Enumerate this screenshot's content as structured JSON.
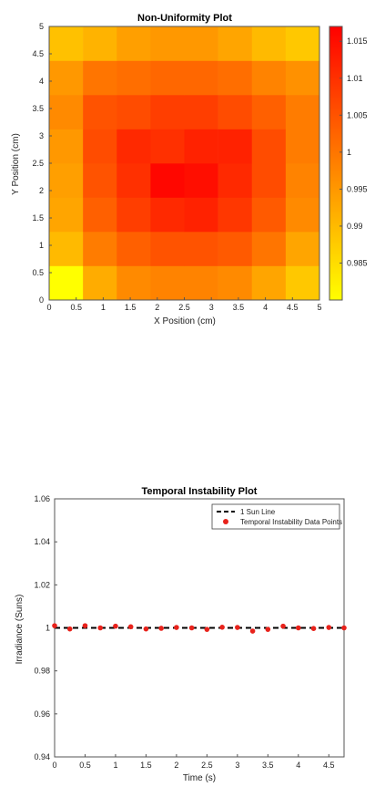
{
  "chart_data": [
    {
      "type": "heatmap",
      "title": "Non-Uniformity Plot",
      "xlabel": "X Position (cm)",
      "ylabel": "Y Position (cm)",
      "xlim": [
        0,
        5
      ],
      "ylim": [
        0,
        5
      ],
      "x_ticks": [
        "0",
        "0.5",
        "1",
        "1.5",
        "2",
        "2.5",
        "3",
        "3.5",
        "4",
        "4.5",
        "5"
      ],
      "y_ticks": [
        "0",
        "0.5",
        "1",
        "1.5",
        "2",
        "2.5",
        "3",
        "3.5",
        "4",
        "4.5",
        "5"
      ],
      "x_edges": [
        0,
        0.625,
        1.25,
        1.875,
        2.5,
        3.125,
        3.75,
        4.375,
        5
      ],
      "y_edges": [
        0,
        0.625,
        1.25,
        1.875,
        2.5,
        3.125,
        3.75,
        4.375,
        5
      ],
      "values_bottom_to_top": [
        [
          0.98,
          0.992,
          0.997,
          0.998,
          0.998,
          0.997,
          0.993,
          0.988
        ],
        [
          0.99,
          0.999,
          1.003,
          1.005,
          1.005,
          1.004,
          1.0,
          0.993
        ],
        [
          0.993,
          1.003,
          1.008,
          1.011,
          1.012,
          1.009,
          1.004,
          0.997
        ],
        [
          0.994,
          1.005,
          1.01,
          1.016,
          1.015,
          1.011,
          1.006,
          0.998
        ],
        [
          0.995,
          1.006,
          1.011,
          1.01,
          1.012,
          1.012,
          1.006,
          0.999
        ],
        [
          0.997,
          1.005,
          1.006,
          1.008,
          1.008,
          1.006,
          1.003,
          0.999
        ],
        [
          0.995,
          1.0,
          1.001,
          1.002,
          1.002,
          1.001,
          0.998,
          0.996
        ],
        [
          0.989,
          0.991,
          0.994,
          0.995,
          0.995,
          0.993,
          0.99,
          0.988
        ]
      ],
      "colorbar": {
        "range": [
          0.98,
          1.017
        ],
        "ticks": [
          0.985,
          0.99,
          0.995,
          1,
          1.005,
          1.01,
          1.015
        ],
        "tick_labels": [
          "0.985",
          "0.99",
          "0.995",
          "1",
          "1.005",
          "1.01",
          "1.015"
        ],
        "colormap": "autumn (yellow to red)"
      },
      "colors": {
        "low": "#ffff00",
        "high": "#ff0000"
      }
    },
    {
      "type": "scatter",
      "title": "Temporal Instability Plot",
      "xlabel": "Time (s)",
      "ylabel": "Irradiance (Suns)",
      "xlim": [
        0,
        4.75
      ],
      "ylim": [
        0.94,
        1.06
      ],
      "x_ticks": [
        "0",
        "0.5",
        "1",
        "1.5",
        "2",
        "2.5",
        "3",
        "3.5",
        "4",
        "4.5"
      ],
      "y_ticks": [
        "0.94",
        "0.96",
        "0.98",
        "1",
        "1.02",
        "1.04",
        "1.06"
      ],
      "series": [
        {
          "name": "1 Sun Line",
          "style": "dashed-line",
          "color": "#000000",
          "x": [
            0,
            4.75
          ],
          "y": [
            1,
            1
          ]
        },
        {
          "name": "Temporal Instability Data Points",
          "style": "markers",
          "color": "#e8221b",
          "x": [
            0,
            0.25,
            0.5,
            0.75,
            1.0,
            1.25,
            1.5,
            1.75,
            2.0,
            2.25,
            2.5,
            2.75,
            3.0,
            3.25,
            3.5,
            3.75,
            4.0,
            4.25,
            4.5,
            4.75
          ],
          "y": [
            1.001,
            0.9995,
            1.001,
            1.0,
            1.0008,
            1.0005,
            0.9995,
            0.9998,
            1.0002,
            1.0,
            0.9993,
            1.0003,
            1.0002,
            0.9985,
            0.9993,
            1.0008,
            1.0,
            0.9997,
            1.0002,
            1.0
          ]
        }
      ],
      "legend_position": "top-right"
    }
  ]
}
